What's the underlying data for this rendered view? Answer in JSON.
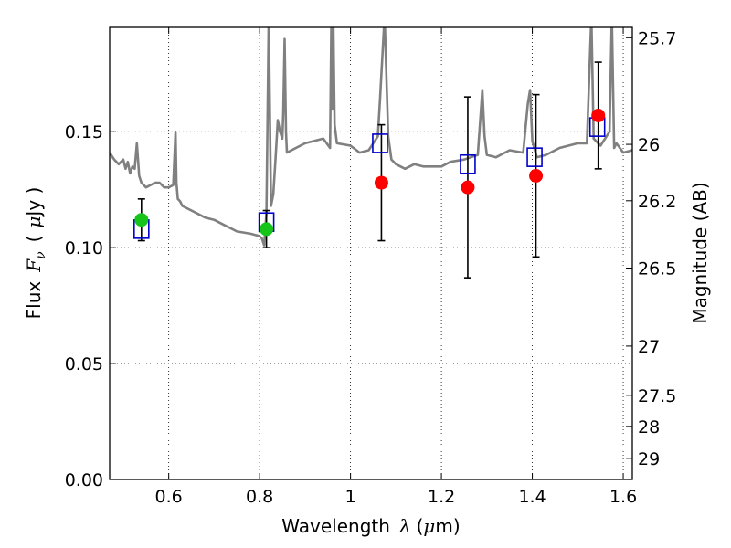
{
  "chart_data": {
    "type": "scatter",
    "xlabel": {
      "prefix": "Wavelength",
      "symbol": "λ",
      "unit_open": "(",
      "unit_sym": "μ",
      "unit_rest": "m)"
    },
    "ylabel": {
      "prefix": "Flux",
      "symbol": "F",
      "sub": "ν",
      "unit_open": "(",
      "unit_sym": "μ",
      "unit_rest": "Jy )"
    },
    "y2label": "Magnitude (AB)",
    "xlim": [
      0.47,
      1.62
    ],
    "ylim": [
      0.0,
      0.195
    ],
    "grid": true,
    "x_ticks": [
      0.6,
      0.8,
      1.0,
      1.2,
      1.4,
      1.6
    ],
    "x_tick_labels": [
      "0.6",
      "0.8",
      "1",
      "1.2",
      "1.4",
      "1.6"
    ],
    "y_ticks": [
      0.0,
      0.05,
      0.1,
      0.15
    ],
    "y_tick_labels": [
      "0.00",
      "0.05",
      "0.10",
      "0.15"
    ],
    "y2_ticks": [
      {
        "mag": 25.7,
        "label": "25.7"
      },
      {
        "mag": 26.0,
        "label": "26"
      },
      {
        "mag": 26.2,
        "label": "26.2"
      },
      {
        "mag": 26.5,
        "label": "26.5"
      },
      {
        "mag": 27.0,
        "label": "27"
      },
      {
        "mag": 27.5,
        "label": "27.5"
      },
      {
        "mag": 28.0,
        "label": "28"
      },
      {
        "mag": 29.0,
        "label": "29"
      }
    ],
    "observed_green": [
      {
        "x": 0.54,
        "y": 0.112,
        "err": 0.009
      },
      {
        "x": 0.815,
        "y": 0.108,
        "err": 0.008
      }
    ],
    "observed_red": [
      {
        "x": 1.068,
        "y": 0.128,
        "err": 0.025
      },
      {
        "x": 1.258,
        "y": 0.126,
        "err": 0.039
      },
      {
        "x": 1.408,
        "y": 0.131,
        "err": 0.035
      },
      {
        "x": 1.545,
        "y": 0.157,
        "err": 0.023
      }
    ],
    "model_boxes": [
      {
        "x": 0.54,
        "y": 0.108
      },
      {
        "x": 0.815,
        "y": 0.111
      },
      {
        "x": 1.065,
        "y": 0.145
      },
      {
        "x": 1.258,
        "y": 0.136
      },
      {
        "x": 1.405,
        "y": 0.139
      },
      {
        "x": 1.543,
        "y": 0.152
      }
    ],
    "spectrum": {
      "x": [
        0.47,
        0.48,
        0.49,
        0.5,
        0.505,
        0.51,
        0.515,
        0.52,
        0.525,
        0.53,
        0.535,
        0.54,
        0.545,
        0.55,
        0.56,
        0.57,
        0.58,
        0.59,
        0.6,
        0.61,
        0.615,
        0.617,
        0.62,
        0.625,
        0.63,
        0.65,
        0.68,
        0.7,
        0.72,
        0.75,
        0.78,
        0.8,
        0.805,
        0.81,
        0.815,
        0.82,
        0.825,
        0.83,
        0.835,
        0.84,
        0.845,
        0.85,
        0.852,
        0.855,
        0.858,
        0.86,
        0.87,
        0.9,
        0.92,
        0.94,
        0.955,
        0.958,
        0.96,
        0.962,
        0.965,
        0.97,
        1.0,
        1.02,
        1.04,
        1.06,
        1.065,
        1.075,
        1.08,
        1.083,
        1.09,
        1.1,
        1.12,
        1.14,
        1.16,
        1.18,
        1.2,
        1.22,
        1.25,
        1.28,
        1.29,
        1.295,
        1.3,
        1.32,
        1.35,
        1.38,
        1.39,
        1.395,
        1.4,
        1.41,
        1.43,
        1.46,
        1.5,
        1.52,
        1.53,
        1.535,
        1.55,
        1.57,
        1.575,
        1.58,
        1.585,
        1.6,
        1.62
      ],
      "y": [
        0.141,
        0.138,
        0.136,
        0.138,
        0.134,
        0.137,
        0.132,
        0.135,
        0.134,
        0.145,
        0.131,
        0.128,
        0.127,
        0.126,
        0.127,
        0.128,
        0.128,
        0.126,
        0.126,
        0.127,
        0.15,
        0.128,
        0.121,
        0.12,
        0.118,
        0.116,
        0.113,
        0.112,
        0.11,
        0.107,
        0.106,
        0.105,
        0.104,
        0.101,
        0.115,
        0.2,
        0.118,
        0.123,
        0.138,
        0.155,
        0.15,
        0.147,
        0.158,
        0.19,
        0.15,
        0.141,
        0.142,
        0.145,
        0.146,
        0.147,
        0.143,
        0.2,
        0.16,
        0.2,
        0.153,
        0.145,
        0.144,
        0.141,
        0.142,
        0.148,
        0.164,
        0.2,
        0.167,
        0.148,
        0.138,
        0.136,
        0.134,
        0.136,
        0.135,
        0.135,
        0.135,
        0.137,
        0.138,
        0.14,
        0.168,
        0.148,
        0.14,
        0.139,
        0.142,
        0.141,
        0.162,
        0.168,
        0.146,
        0.139,
        0.14,
        0.143,
        0.145,
        0.145,
        0.2,
        0.147,
        0.144,
        0.15,
        0.2,
        0.143,
        0.145,
        0.141,
        0.142
      ]
    }
  }
}
